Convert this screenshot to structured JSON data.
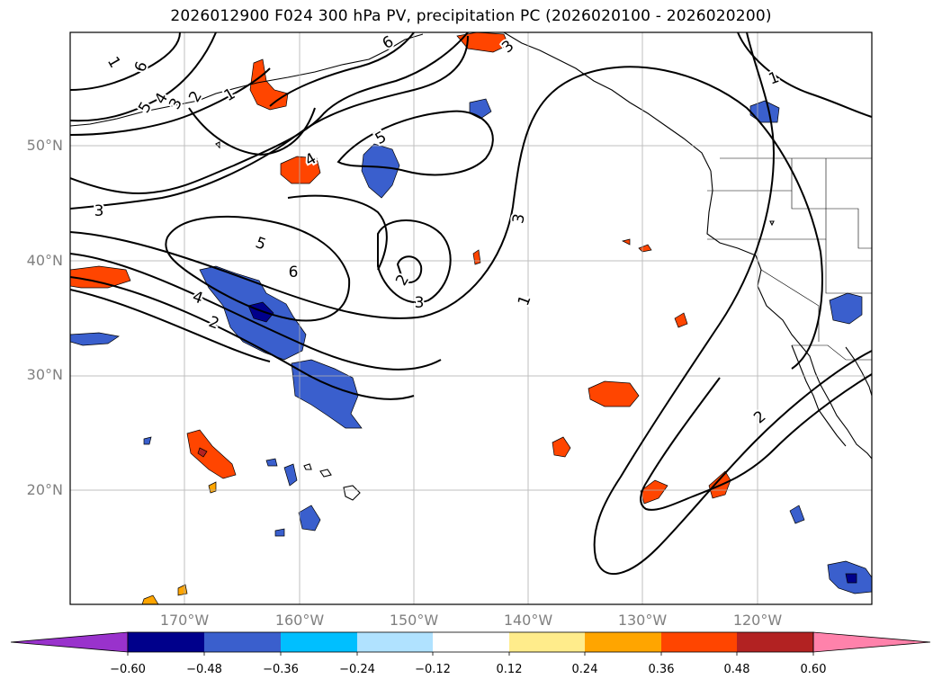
{
  "title": "2026012900 F024 300 hPa PV, precipitation PC (2026020100 - 2026020200)",
  "lat_labels": [
    "50°N",
    "40°N",
    "30°N",
    "20°N"
  ],
  "lon_labels": [
    "170°W",
    "160°W",
    "150°W",
    "140°W",
    "130°W",
    "120°W"
  ],
  "colorbar": {
    "ticks": [
      "−0.60",
      "−0.48",
      "−0.36",
      "−0.24",
      "−0.12",
      "0.12",
      "0.24",
      "0.36",
      "0.48",
      "0.60"
    ],
    "colors": [
      "#9932cc",
      "#00008b",
      "#3a5fcd",
      "#00bfff",
      "#b0e2ff",
      "#ffffff",
      "#ffec8b",
      "#ffa500",
      "#ff4500",
      "#b22222",
      "#ff82ab"
    ]
  },
  "contour_labels": [
    "1",
    "6",
    "5",
    "4",
    "3",
    "2",
    "1",
    "6",
    "5",
    "4",
    "3",
    "5",
    "6",
    "4",
    "2",
    "2",
    "3",
    "3",
    "3",
    "1",
    "1",
    "2"
  ]
}
